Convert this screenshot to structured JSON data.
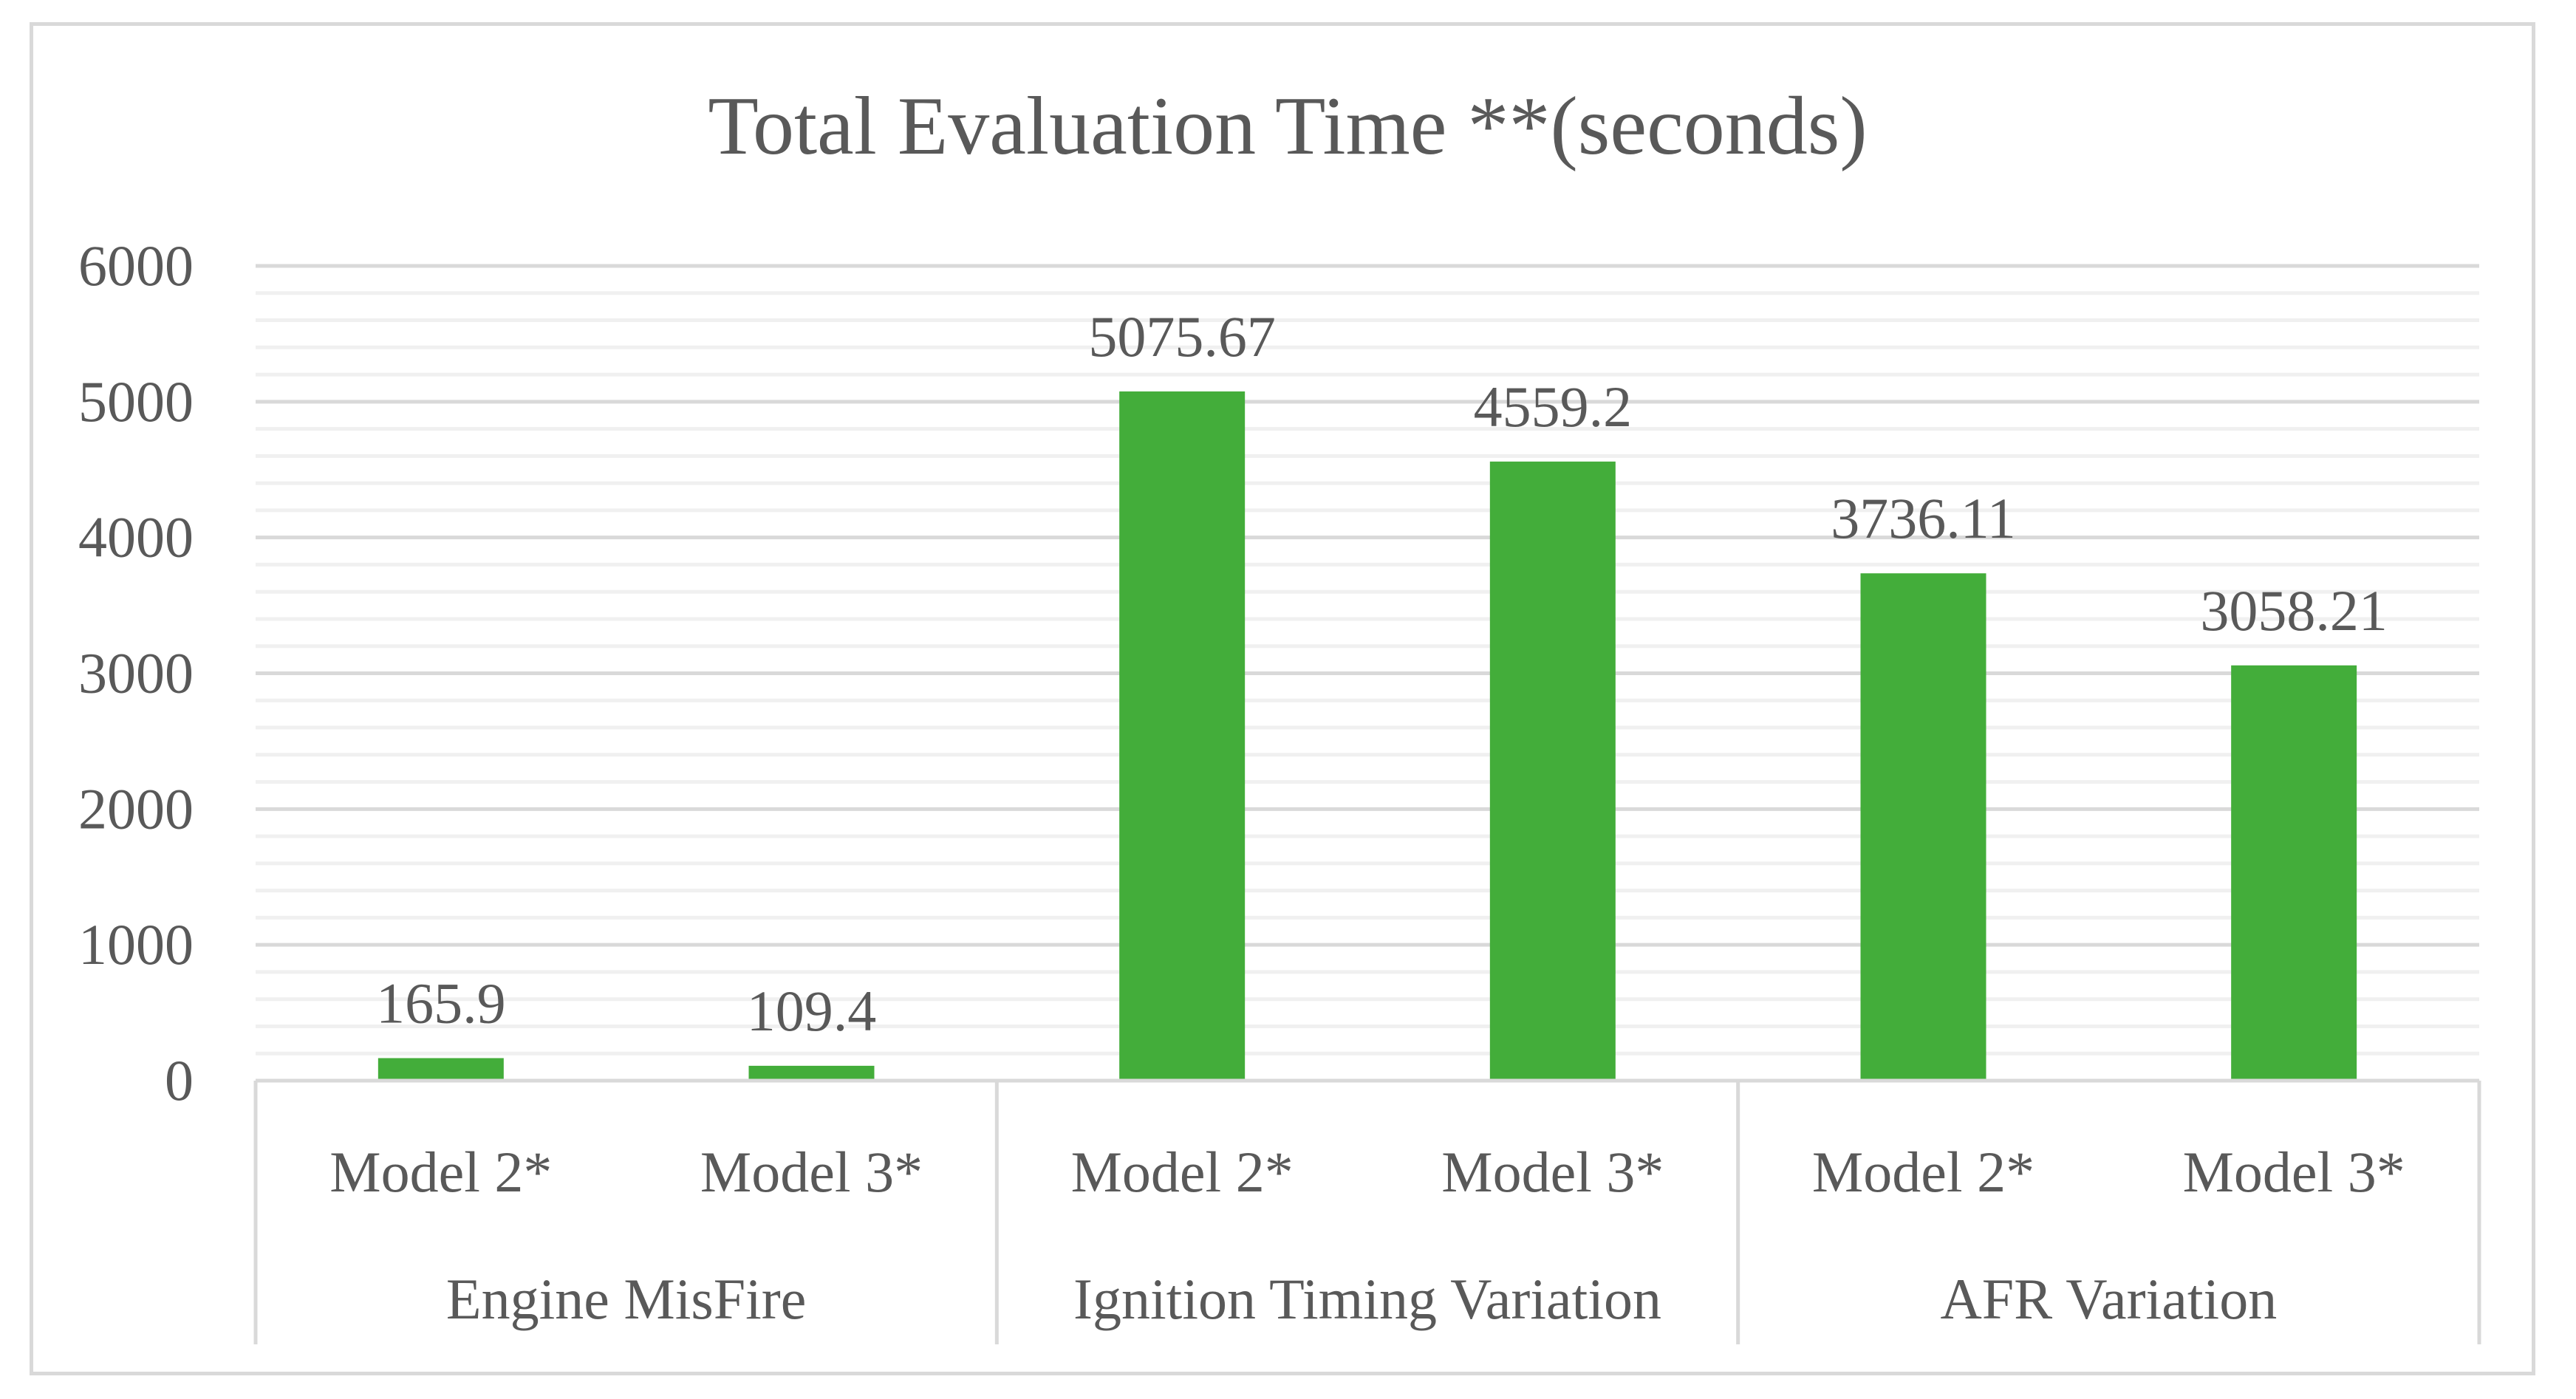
{
  "chart_data": {
    "type": "bar",
    "title": "Total Evaluation Time **(seconds)",
    "xlabel": "",
    "ylabel": "",
    "ylim": [
      0,
      6000
    ],
    "yticks": [
      0,
      1000,
      2000,
      3000,
      4000,
      5000,
      6000
    ],
    "minor_gridlines": true,
    "legend": "none",
    "groups": [
      {
        "name": "Engine MisFire",
        "categories": [
          "Model 2*",
          "Model 3*"
        ],
        "values": [
          165.9,
          109.4
        ],
        "labels": [
          "165.9",
          "109.4"
        ]
      },
      {
        "name": "Ignition Timing Variation",
        "categories": [
          "Model 2*",
          "Model 3*"
        ],
        "values": [
          5075.67,
          4559.2
        ],
        "labels": [
          "5075.67",
          "4559.2"
        ]
      },
      {
        "name": "AFR Variation",
        "categories": [
          "Model 2*",
          "Model 3*"
        ],
        "values": [
          3736.11,
          3058.21
        ],
        "labels": [
          "3736.11",
          "3058.21"
        ]
      }
    ],
    "colors": {
      "bar": "#43ad3a",
      "text": "#595959",
      "major_grid": "#d9d9d9",
      "minor_grid": "#f0f0f0",
      "axis": "#d9d9d9"
    }
  }
}
